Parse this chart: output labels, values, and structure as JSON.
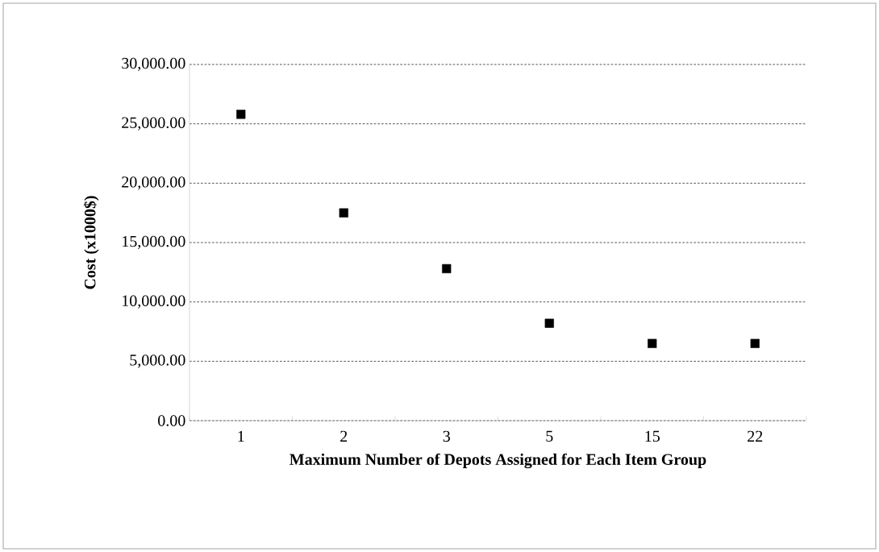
{
  "chart_data": {
    "type": "scatter",
    "xlabel": "Maximum Number of Depots Assigned for Each Item Group",
    "ylabel": "Cost (x1000$)",
    "categories": [
      "1",
      "2",
      "3",
      "5",
      "15",
      "22"
    ],
    "values": [
      25800,
      17500,
      12800,
      8200,
      6500,
      6500
    ],
    "color": "#000000",
    "ylim": [
      0,
      30000
    ],
    "yticks": [
      {
        "value": 0,
        "label": "0.00"
      },
      {
        "value": 5000,
        "label": "5,000.00"
      },
      {
        "value": 10000,
        "label": "10,000.00"
      },
      {
        "value": 15000,
        "label": "15,000.00"
      },
      {
        "value": 20000,
        "label": "20,000.00"
      },
      {
        "value": 25000,
        "label": "25,000.00"
      },
      {
        "value": 30000,
        "label": "30,000.00"
      }
    ],
    "grid": "y",
    "marker": "square"
  }
}
